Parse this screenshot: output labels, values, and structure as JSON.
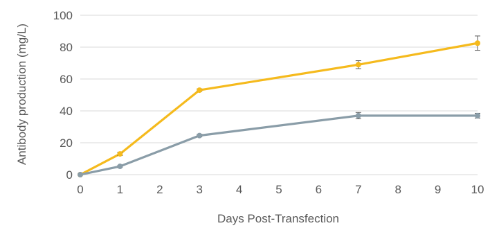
{
  "chart_data": {
    "type": "line",
    "title": "",
    "xlabel": "Days Post-Transfection",
    "ylabel": "Antibody production  (mg/L)",
    "xlim": [
      0,
      10
    ],
    "ylim": [
      0,
      100
    ],
    "x_ticks": [
      0,
      1,
      2,
      3,
      4,
      5,
      6,
      7,
      8,
      9,
      10
    ],
    "y_ticks": [
      0,
      20,
      40,
      60,
      80,
      100
    ],
    "grid": "horizontal",
    "legend": "none",
    "x": [
      0,
      1,
      3,
      7,
      10
    ],
    "series": [
      {
        "color": "#F5BA1D",
        "values": [
          0,
          13,
          53,
          69,
          82.5
        ],
        "error": [
          0,
          1,
          0.8,
          2.5,
          4.5
        ]
      },
      {
        "color": "#8A9DA8",
        "values": [
          0,
          5.2,
          24.5,
          37,
          37
        ],
        "error": [
          0,
          0.5,
          0.8,
          2,
          1.5
        ]
      }
    ]
  }
}
